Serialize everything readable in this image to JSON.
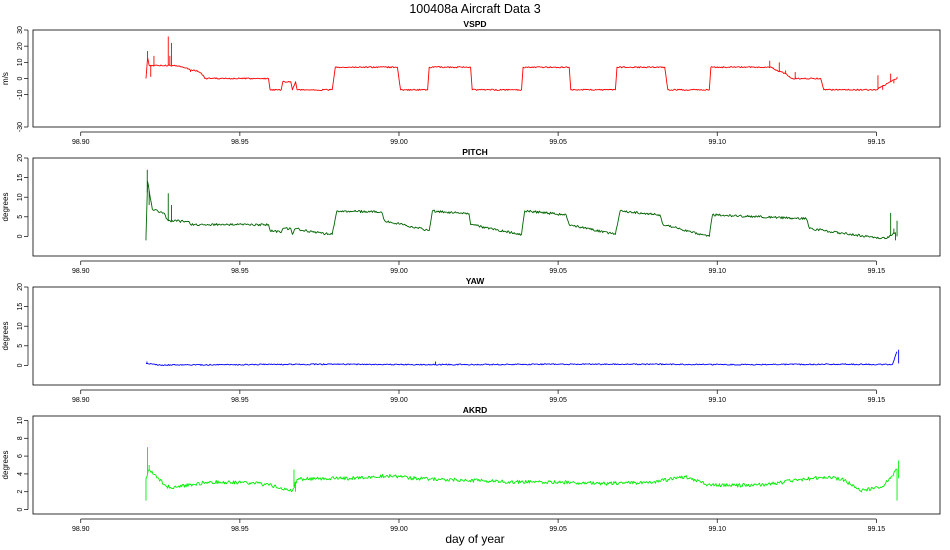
{
  "figure": {
    "title": "100408a   Aircraft Data 3",
    "xlabel": "day of year"
  },
  "chart_data": [
    {
      "type": "line",
      "title": "VSPD",
      "ylabel": "m/s",
      "color": "#ff0000",
      "xlim": [
        98.885,
        99.17
      ],
      "ylim": [
        -30,
        30
      ],
      "xticks": [
        "98.90",
        "98.95",
        "99.00",
        "99.05",
        "99.10",
        "99.15"
      ],
      "yticks": [
        "-30",
        "-10",
        "0",
        "10",
        "20",
        "30"
      ],
      "noise": 0.4,
      "spikes": [
        [
          98.921,
          17
        ],
        [
          98.922,
          1
        ],
        [
          98.923,
          14
        ],
        [
          98.9275,
          26
        ],
        [
          98.928,
          14
        ],
        [
          98.9285,
          22
        ],
        [
          98.9345,
          4
        ],
        [
          99.1165,
          11
        ],
        [
          99.1175,
          6
        ],
        [
          99.1195,
          10
        ],
        [
          99.1215,
          5
        ],
        [
          99.1245,
          4
        ],
        [
          99.1505,
          2
        ],
        [
          99.152,
          -7
        ],
        [
          99.1545,
          3
        ],
        [
          99.1555,
          -3
        ],
        [
          99.1565,
          1
        ]
      ],
      "series": [
        {
          "x": [
            98.9205,
            98.921,
            98.9215,
            98.93,
            98.934,
            98.9345,
            98.9365,
            98.9385,
            98.939,
            98.959,
            98.9595,
            98.963,
            98.9635,
            98.966,
            98.9665,
            98.9675,
            98.968,
            98.979,
            98.98,
            98.9995,
            99.0005,
            99.009,
            99.0095,
            99.0225,
            99.023,
            99.0385,
            99.039,
            99.0535,
            99.054,
            99.068,
            99.0685,
            99.0835,
            99.0845,
            99.0975,
            99.098,
            99.117,
            99.1185,
            99.1215,
            99.1235,
            99.1325,
            99.1335,
            99.15,
            99.1535,
            99.1565
          ],
          "y": [
            0,
            13,
            8,
            8,
            6,
            5,
            5,
            2,
            0,
            0,
            -7,
            -7,
            -2,
            -2,
            -7,
            -2,
            -7,
            -7,
            7,
            7,
            -7,
            -7,
            7,
            7,
            -7,
            -7,
            7,
            7,
            -7,
            -7,
            7,
            7,
            -7,
            -7,
            7,
            7,
            5,
            3,
            0,
            0,
            -7,
            -7,
            -3,
            0
          ]
        }
      ]
    },
    {
      "type": "line",
      "title": "PITCH",
      "ylabel": "degrees",
      "color": "#006400",
      "xlim": [
        98.885,
        99.17
      ],
      "ylim": [
        -5,
        20
      ],
      "xticks": [
        "98.90",
        "98.95",
        "99.00",
        "99.05",
        "99.10",
        "99.15"
      ],
      "yticks": [
        "0",
        "5",
        "10",
        "15",
        "20"
      ],
      "noise": 0.3,
      "spikes": [
        [
          98.9205,
          -1
        ],
        [
          98.9209,
          17
        ],
        [
          98.9213,
          13
        ],
        [
          98.9215,
          8
        ],
        [
          98.9275,
          11
        ],
        [
          98.9285,
          8
        ],
        [
          99.1545,
          6
        ],
        [
          99.1555,
          2
        ],
        [
          99.156,
          -1
        ],
        [
          99.1565,
          4
        ]
      ],
      "series": [
        {
          "x": [
            98.9205,
            98.921,
            98.9225,
            98.926,
            98.9275,
            98.934,
            98.9345,
            98.939,
            98.959,
            98.9595,
            98.963,
            98.9635,
            98.966,
            98.9665,
            98.9675,
            98.9705,
            98.979,
            98.9805,
            98.9945,
            98.9955,
            99.0095,
            99.0105,
            99.022,
            99.0225,
            99.0385,
            99.0395,
            99.0525,
            99.0535,
            99.068,
            99.0695,
            99.082,
            99.083,
            99.0975,
            99.0985,
            99.128,
            99.129,
            99.142,
            99.147,
            99.153,
            99.156
          ],
          "y": [
            0,
            14,
            7,
            6,
            4,
            3.8,
            3,
            3,
            3,
            1.5,
            1,
            2,
            2,
            0.5,
            2,
            1.5,
            0.5,
            6.5,
            6.2,
            4,
            1.5,
            6.5,
            5.8,
            3,
            0.5,
            6.5,
            5.5,
            3,
            0.5,
            6.5,
            5.5,
            3,
            0,
            5.5,
            4.5,
            2,
            0.5,
            0,
            -0.5,
            1
          ]
        }
      ]
    },
    {
      "type": "line",
      "title": "YAW",
      "ylabel": "degrees",
      "color": "#0000ff",
      "xlim": [
        98.885,
        99.17
      ],
      "ylim": [
        -5,
        20
      ],
      "xticks": [
        "98.90",
        "98.95",
        "99.00",
        "99.05",
        "99.10",
        "99.15"
      ],
      "yticks": [
        "0",
        "5",
        "10",
        "15",
        "20"
      ],
      "noise": 0.15,
      "spikes": [
        [
          98.9208,
          1
        ],
        [
          99.0115,
          1
        ],
        [
          99.157,
          4
        ]
      ],
      "series": [
        {
          "x": [
            98.9205,
            98.925,
            98.95,
            98.98,
            99.01,
            99.05,
            99.08,
            99.11,
            99.14,
            99.155,
            99.1565
          ],
          "y": [
            0.5,
            0.1,
            0.2,
            0.3,
            0.2,
            0.3,
            0.3,
            0.2,
            0.3,
            0.2,
            3.5
          ]
        }
      ]
    },
    {
      "type": "line",
      "title": "AKRD",
      "ylabel": "degrees",
      "color": "#00ee00",
      "xlim": [
        98.885,
        99.17
      ],
      "ylim": [
        -0.5,
        10.5
      ],
      "xticks": [
        "98.90",
        "98.95",
        "99.00",
        "99.05",
        "99.10",
        "99.15"
      ],
      "yticks": [
        "0",
        "2",
        "4",
        "6",
        "8",
        "10"
      ],
      "noise": 0.2,
      "spikes": [
        [
          98.9205,
          1
        ],
        [
          98.921,
          7
        ],
        [
          98.9215,
          5
        ],
        [
          98.967,
          4.5
        ],
        [
          98.9675,
          2
        ],
        [
          99.1565,
          1
        ],
        [
          99.157,
          5.5
        ]
      ],
      "series": [
        {
          "x": [
            98.9205,
            98.9215,
            98.9245,
            98.927,
            98.93,
            98.94,
            98.954,
            98.96,
            98.9665,
            98.968,
            98.975,
            98.985,
            98.996,
            99.005,
            99.02,
            99.035,
            99.05,
            99.065,
            99.08,
            99.09,
            99.097,
            99.105,
            99.115,
            99.125,
            99.135,
            99.14,
            99.145,
            99.152,
            99.1565
          ],
          "y": [
            3.5,
            4.5,
            3.5,
            2.6,
            2.5,
            3.1,
            3,
            2.7,
            2.1,
            3.4,
            3.5,
            3.5,
            3.8,
            3.5,
            3.3,
            3.1,
            3.1,
            2.9,
            3.1,
            3.7,
            2.8,
            2.7,
            2.8,
            3.3,
            3.7,
            3.3,
            2.1,
            2.6,
            4.5
          ]
        }
      ]
    }
  ]
}
